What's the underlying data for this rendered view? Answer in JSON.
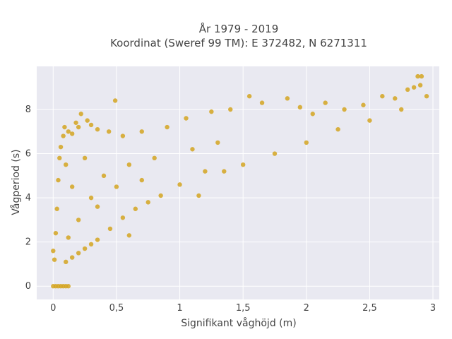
{
  "chart_data": {
    "type": "scatter",
    "title_line1": "År 1979 - 2019",
    "title_line2": "Koordinat (Sweref 99 TM): E 372482, N 6271311",
    "xlabel": "Signifikant våghöjd (m)",
    "ylabel": "Vågperiod (s)",
    "xlim": [
      -0.13,
      3.05
    ],
    "ylim": [
      -0.6,
      9.95
    ],
    "x_ticks": [
      0,
      0.5,
      1,
      1.5,
      2,
      2.5,
      3
    ],
    "x_tick_labels": [
      "0",
      "0,5",
      "1",
      "1,5",
      "2",
      "2,5",
      "3"
    ],
    "y_ticks": [
      0,
      2,
      4,
      6,
      8
    ],
    "y_tick_labels": [
      "0",
      "2",
      "4",
      "6",
      "8"
    ],
    "marker_color": "#d4a421",
    "plot_bg": "#e9e9f1",
    "series": [
      {
        "points": [
          [
            0.0,
            0.0
          ],
          [
            0.02,
            0.0
          ],
          [
            0.04,
            0.0
          ],
          [
            0.06,
            0.0
          ],
          [
            0.08,
            0.0
          ],
          [
            0.1,
            0.0
          ],
          [
            0.12,
            0.0
          ],
          [
            0.0,
            1.6
          ],
          [
            0.01,
            1.2
          ],
          [
            0.02,
            2.4
          ],
          [
            0.03,
            3.5
          ],
          [
            0.04,
            4.8
          ],
          [
            0.05,
            5.8
          ],
          [
            0.06,
            6.3
          ],
          [
            0.08,
            6.8
          ],
          [
            0.09,
            7.2
          ],
          [
            0.1,
            5.5
          ],
          [
            0.12,
            7.0
          ],
          [
            0.15,
            6.9
          ],
          [
            0.18,
            7.4
          ],
          [
            0.2,
            7.2
          ],
          [
            0.22,
            7.8
          ],
          [
            0.27,
            7.5
          ],
          [
            0.3,
            7.3
          ],
          [
            0.35,
            7.1
          ],
          [
            0.44,
            7.0
          ],
          [
            0.49,
            8.4
          ],
          [
            0.1,
            1.1
          ],
          [
            0.15,
            1.3
          ],
          [
            0.2,
            1.5
          ],
          [
            0.25,
            1.7
          ],
          [
            0.3,
            1.9
          ],
          [
            0.35,
            2.1
          ],
          [
            0.45,
            2.6
          ],
          [
            0.55,
            3.1
          ],
          [
            0.65,
            3.5
          ],
          [
            0.75,
            3.8
          ],
          [
            0.85,
            4.1
          ],
          [
            1.0,
            4.6
          ],
          [
            1.15,
            4.1
          ],
          [
            1.2,
            5.2
          ],
          [
            1.35,
            5.2
          ],
          [
            1.5,
            5.5
          ],
          [
            1.75,
            6.0
          ],
          [
            2.0,
            6.5
          ],
          [
            2.25,
            7.1
          ],
          [
            2.5,
            7.5
          ],
          [
            2.75,
            8.0
          ],
          [
            0.55,
            6.8
          ],
          [
            0.7,
            7.0
          ],
          [
            0.9,
            7.2
          ],
          [
            1.05,
            7.6
          ],
          [
            1.25,
            7.9
          ],
          [
            1.4,
            8.0
          ],
          [
            1.55,
            8.6
          ],
          [
            1.65,
            8.3
          ],
          [
            1.85,
            8.5
          ],
          [
            1.95,
            8.1
          ],
          [
            2.05,
            7.8
          ],
          [
            2.15,
            8.3
          ],
          [
            2.3,
            8.0
          ],
          [
            2.45,
            8.2
          ],
          [
            2.6,
            8.6
          ],
          [
            2.7,
            8.5
          ],
          [
            2.8,
            8.9
          ],
          [
            2.85,
            9.0
          ],
          [
            2.88,
            9.5
          ],
          [
            2.91,
            9.5
          ],
          [
            2.9,
            9.1
          ],
          [
            2.95,
            8.6
          ],
          [
            0.4,
            5.0
          ],
          [
            0.6,
            5.5
          ],
          [
            0.8,
            5.8
          ],
          [
            1.1,
            6.2
          ],
          [
            1.3,
            6.5
          ],
          [
            0.3,
            4.0
          ],
          [
            0.5,
            4.5
          ],
          [
            0.7,
            4.8
          ],
          [
            0.2,
            3.0
          ],
          [
            0.35,
            3.6
          ],
          [
            0.6,
            2.3
          ],
          [
            0.12,
            2.2
          ],
          [
            0.15,
            4.5
          ],
          [
            0.25,
            5.8
          ]
        ]
      }
    ]
  }
}
